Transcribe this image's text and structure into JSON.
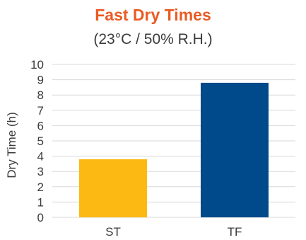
{
  "colors": {
    "title": "#EA5B24",
    "gridline": "#D9D9D9",
    "axis_text": "#3B3B3B"
  },
  "chart_data": {
    "type": "bar",
    "title": "Fast Dry Times",
    "subtitle": "(23°C / 50% R.H.)",
    "xlabel": "",
    "ylabel": "Dry Time (h)",
    "categories": [
      "ST",
      "TF"
    ],
    "values": [
      3.8,
      8.8
    ],
    "bar_colors": [
      "#FDB913",
      "#00498A"
    ],
    "ylim": [
      0,
      10
    ],
    "yticks": [
      0,
      1,
      2,
      3,
      4,
      5,
      6,
      7,
      8,
      9,
      10
    ],
    "grid": true,
    "legend": "none"
  }
}
